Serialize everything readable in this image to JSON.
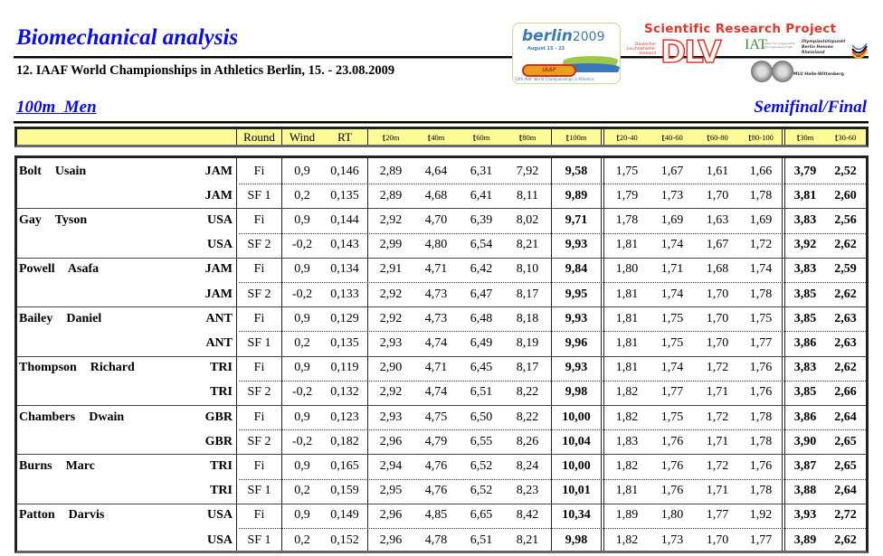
{
  "header": {
    "title": "Biomechanical analysis",
    "subtitle": "12. IAAF World Championships in Athletics Berlin, 15. - 23.08.2009",
    "event": "100m  Men",
    "phase": "Semifinal/Final"
  },
  "logos": {
    "berlin_logo": {
      "word": "berlin",
      "year": "2009",
      "dates": "August 15 - 23",
      "badge": "IAAF",
      "caption": "12th IAAF World Championships in Athletics"
    },
    "project_title": "Scientific Research Project",
    "dlv": {
      "small_text": "Deutscher Leichtathletik-Verband",
      "letters": "DLV"
    },
    "iat": "IAT",
    "olympiastuetzpunkt": "Olympiastützpunkt Berlin Hessen Rheinland",
    "mlu": "MLU Halle-Wittenberg",
    "colors": {
      "brand_red": "#e8322a",
      "title_blue": "#0b0bf0",
      "header_yellow": "#fdfb96"
    }
  },
  "table": {
    "columns": [
      {
        "key": "name",
        "label": ""
      },
      {
        "key": "round",
        "label": "Round"
      },
      {
        "key": "wind",
        "label": "Wind"
      },
      {
        "key": "rt",
        "label": "RT"
      },
      {
        "key": "t20",
        "label": "t",
        "sub": "20m"
      },
      {
        "key": "t40",
        "label": "t",
        "sub": "40m"
      },
      {
        "key": "t60",
        "label": "t",
        "sub": "60m"
      },
      {
        "key": "t80",
        "label": "t",
        "sub": "80m"
      },
      {
        "key": "t100",
        "label": "t",
        "sub": "100m"
      },
      {
        "key": "s2040",
        "label": "t",
        "sub": "20-40"
      },
      {
        "key": "s4060",
        "label": "t",
        "sub": "40-60"
      },
      {
        "key": "s6080",
        "label": "t",
        "sub": "60-80"
      },
      {
        "key": "s80100",
        "label": "t",
        "sub": "80-100"
      },
      {
        "key": "t30",
        "label": "t",
        "sub": "30m"
      },
      {
        "key": "t3060",
        "label": "t",
        "sub": "30-60"
      }
    ],
    "athletes": [
      {
        "name": "Bolt  Usain",
        "rows": [
          {
            "country": "JAM",
            "round": "Fi",
            "wind": "0,9",
            "rt": "0,146",
            "t20": "2,89",
            "t40": "4,64",
            "t60": "6,31",
            "t80": "7,92",
            "t100": "9,58",
            "s2040": "1,75",
            "s4060": "1,67",
            "s6080": "1,61",
            "s80100": "1,66",
            "t30": "3,79",
            "t3060": "2,52"
          },
          {
            "country": "JAM",
            "round": "SF 1",
            "wind": "0,2",
            "rt": "0,135",
            "t20": "2,89",
            "t40": "4,68",
            "t60": "6,41",
            "t80": "8,11",
            "t100": "9,89",
            "s2040": "1,79",
            "s4060": "1,73",
            "s6080": "1,70",
            "s80100": "1,78",
            "t30": "3,81",
            "t3060": "2,60"
          }
        ]
      },
      {
        "name": "Gay  Tyson",
        "rows": [
          {
            "country": "USA",
            "round": "Fi",
            "wind": "0,9",
            "rt": "0,144",
            "t20": "2,92",
            "t40": "4,70",
            "t60": "6,39",
            "t80": "8,02",
            "t100": "9,71",
            "s2040": "1,78",
            "s4060": "1,69",
            "s6080": "1,63",
            "s80100": "1,69",
            "t30": "3,83",
            "t3060": "2,56"
          },
          {
            "country": "USA",
            "round": "SF 2",
            "wind": "-0,2",
            "rt": "0,143",
            "t20": "2,99",
            "t40": "4,80",
            "t60": "6,54",
            "t80": "8,21",
            "t100": "9,93",
            "s2040": "1,81",
            "s4060": "1,74",
            "s6080": "1,67",
            "s80100": "1,72",
            "t30": "3,92",
            "t3060": "2,62"
          }
        ]
      },
      {
        "name": "Powell  Asafa",
        "rows": [
          {
            "country": "JAM",
            "round": "Fi",
            "wind": "0,9",
            "rt": "0,134",
            "t20": "2,91",
            "t40": "4,71",
            "t60": "6,42",
            "t80": "8,10",
            "t100": "9,84",
            "s2040": "1,80",
            "s4060": "1,71",
            "s6080": "1,68",
            "s80100": "1,74",
            "t30": "3,83",
            "t3060": "2,59"
          },
          {
            "country": "JAM",
            "round": "SF 2",
            "wind": "-0,2",
            "rt": "0,133",
            "t20": "2,92",
            "t40": "4,73",
            "t60": "6,47",
            "t80": "8,17",
            "t100": "9,95",
            "s2040": "1,81",
            "s4060": "1,74",
            "s6080": "1,70",
            "s80100": "1,78",
            "t30": "3,85",
            "t3060": "2,62"
          }
        ]
      },
      {
        "name": "Bailey  Daniel",
        "rows": [
          {
            "country": "ANT",
            "round": "Fi",
            "wind": "0,9",
            "rt": "0,129",
            "t20": "2,92",
            "t40": "4,73",
            "t60": "6,48",
            "t80": "8,18",
            "t100": "9,93",
            "s2040": "1,81",
            "s4060": "1,75",
            "s6080": "1,70",
            "s80100": "1,75",
            "t30": "3,85",
            "t3060": "2,63"
          },
          {
            "country": "ANT",
            "round": "SF 1",
            "wind": "0,2",
            "rt": "0,135",
            "t20": "2,93",
            "t40": "4,74",
            "t60": "6,49",
            "t80": "8,19",
            "t100": "9,96",
            "s2040": "1,81",
            "s4060": "1,75",
            "s6080": "1,70",
            "s80100": "1,77",
            "t30": "3,86",
            "t3060": "2,63"
          }
        ]
      },
      {
        "name": "Thompson  Richard",
        "rows": [
          {
            "country": "TRI",
            "round": "Fi",
            "wind": "0,9",
            "rt": "0,119",
            "t20": "2,90",
            "t40": "4,71",
            "t60": "6,45",
            "t80": "8,17",
            "t100": "9,93",
            "s2040": "1,81",
            "s4060": "1,74",
            "s6080": "1,72",
            "s80100": "1,76",
            "t30": "3,83",
            "t3060": "2,62"
          },
          {
            "country": "TRI",
            "round": "SF 2",
            "wind": "-0,2",
            "rt": "0,132",
            "t20": "2,92",
            "t40": "4,74",
            "t60": "6,51",
            "t80": "8,22",
            "t100": "9,98",
            "s2040": "1,82",
            "s4060": "1,77",
            "s6080": "1,71",
            "s80100": "1,76",
            "t30": "3,85",
            "t3060": "2,66"
          }
        ]
      },
      {
        "name": "Chambers  Dwain",
        "rows": [
          {
            "country": "GBR",
            "round": "Fi",
            "wind": "0,9",
            "rt": "0,123",
            "t20": "2,93",
            "t40": "4,75",
            "t60": "6,50",
            "t80": "8,22",
            "t100": "10,00",
            "s2040": "1,82",
            "s4060": "1,75",
            "s6080": "1,72",
            "s80100": "1,78",
            "t30": "3,86",
            "t3060": "2,64"
          },
          {
            "country": "GBR",
            "round": "SF 2",
            "wind": "-0,2",
            "rt": "0,182",
            "t20": "2,96",
            "t40": "4,79",
            "t60": "6,55",
            "t80": "8,26",
            "t100": "10,04",
            "s2040": "1,83",
            "s4060": "1,76",
            "s6080": "1,71",
            "s80100": "1,78",
            "t30": "3,90",
            "t3060": "2,65"
          }
        ]
      },
      {
        "name": "Burns  Marc",
        "rows": [
          {
            "country": "TRI",
            "round": "Fi",
            "wind": "0,9",
            "rt": "0,165",
            "t20": "2,94",
            "t40": "4,76",
            "t60": "6,52",
            "t80": "8,24",
            "t100": "10,00",
            "s2040": "1,82",
            "s4060": "1,76",
            "s6080": "1,72",
            "s80100": "1,76",
            "t30": "3,87",
            "t3060": "2,65"
          },
          {
            "country": "TRI",
            "round": "SF 1",
            "wind": "0,2",
            "rt": "0,159",
            "t20": "2,95",
            "t40": "4,76",
            "t60": "6,52",
            "t80": "8,23",
            "t100": "10,01",
            "s2040": "1,81",
            "s4060": "1,76",
            "s6080": "1,71",
            "s80100": "1,78",
            "t30": "3,88",
            "t3060": "2,64"
          }
        ]
      },
      {
        "name": "Patton  Darvis",
        "rows": [
          {
            "country": "USA",
            "round": "Fi",
            "wind": "0,9",
            "rt": "0,149",
            "t20": "2,96",
            "t40": "4,85",
            "t60": "6,65",
            "t80": "8,42",
            "t100": "10,34",
            "s2040": "1,89",
            "s4060": "1,80",
            "s6080": "1,77",
            "s80100": "1,92",
            "t30": "3,93",
            "t3060": "2,72"
          },
          {
            "country": "USA",
            "round": "SF 1",
            "wind": "0,2",
            "rt": "0,152",
            "t20": "2,96",
            "t40": "4,78",
            "t60": "6,51",
            "t80": "8,21",
            "t100": "9,98",
            "s2040": "1,82",
            "s4060": "1,73",
            "s6080": "1,70",
            "s80100": "1,77",
            "t30": "3,89",
            "t3060": "2,62"
          }
        ]
      }
    ]
  }
}
